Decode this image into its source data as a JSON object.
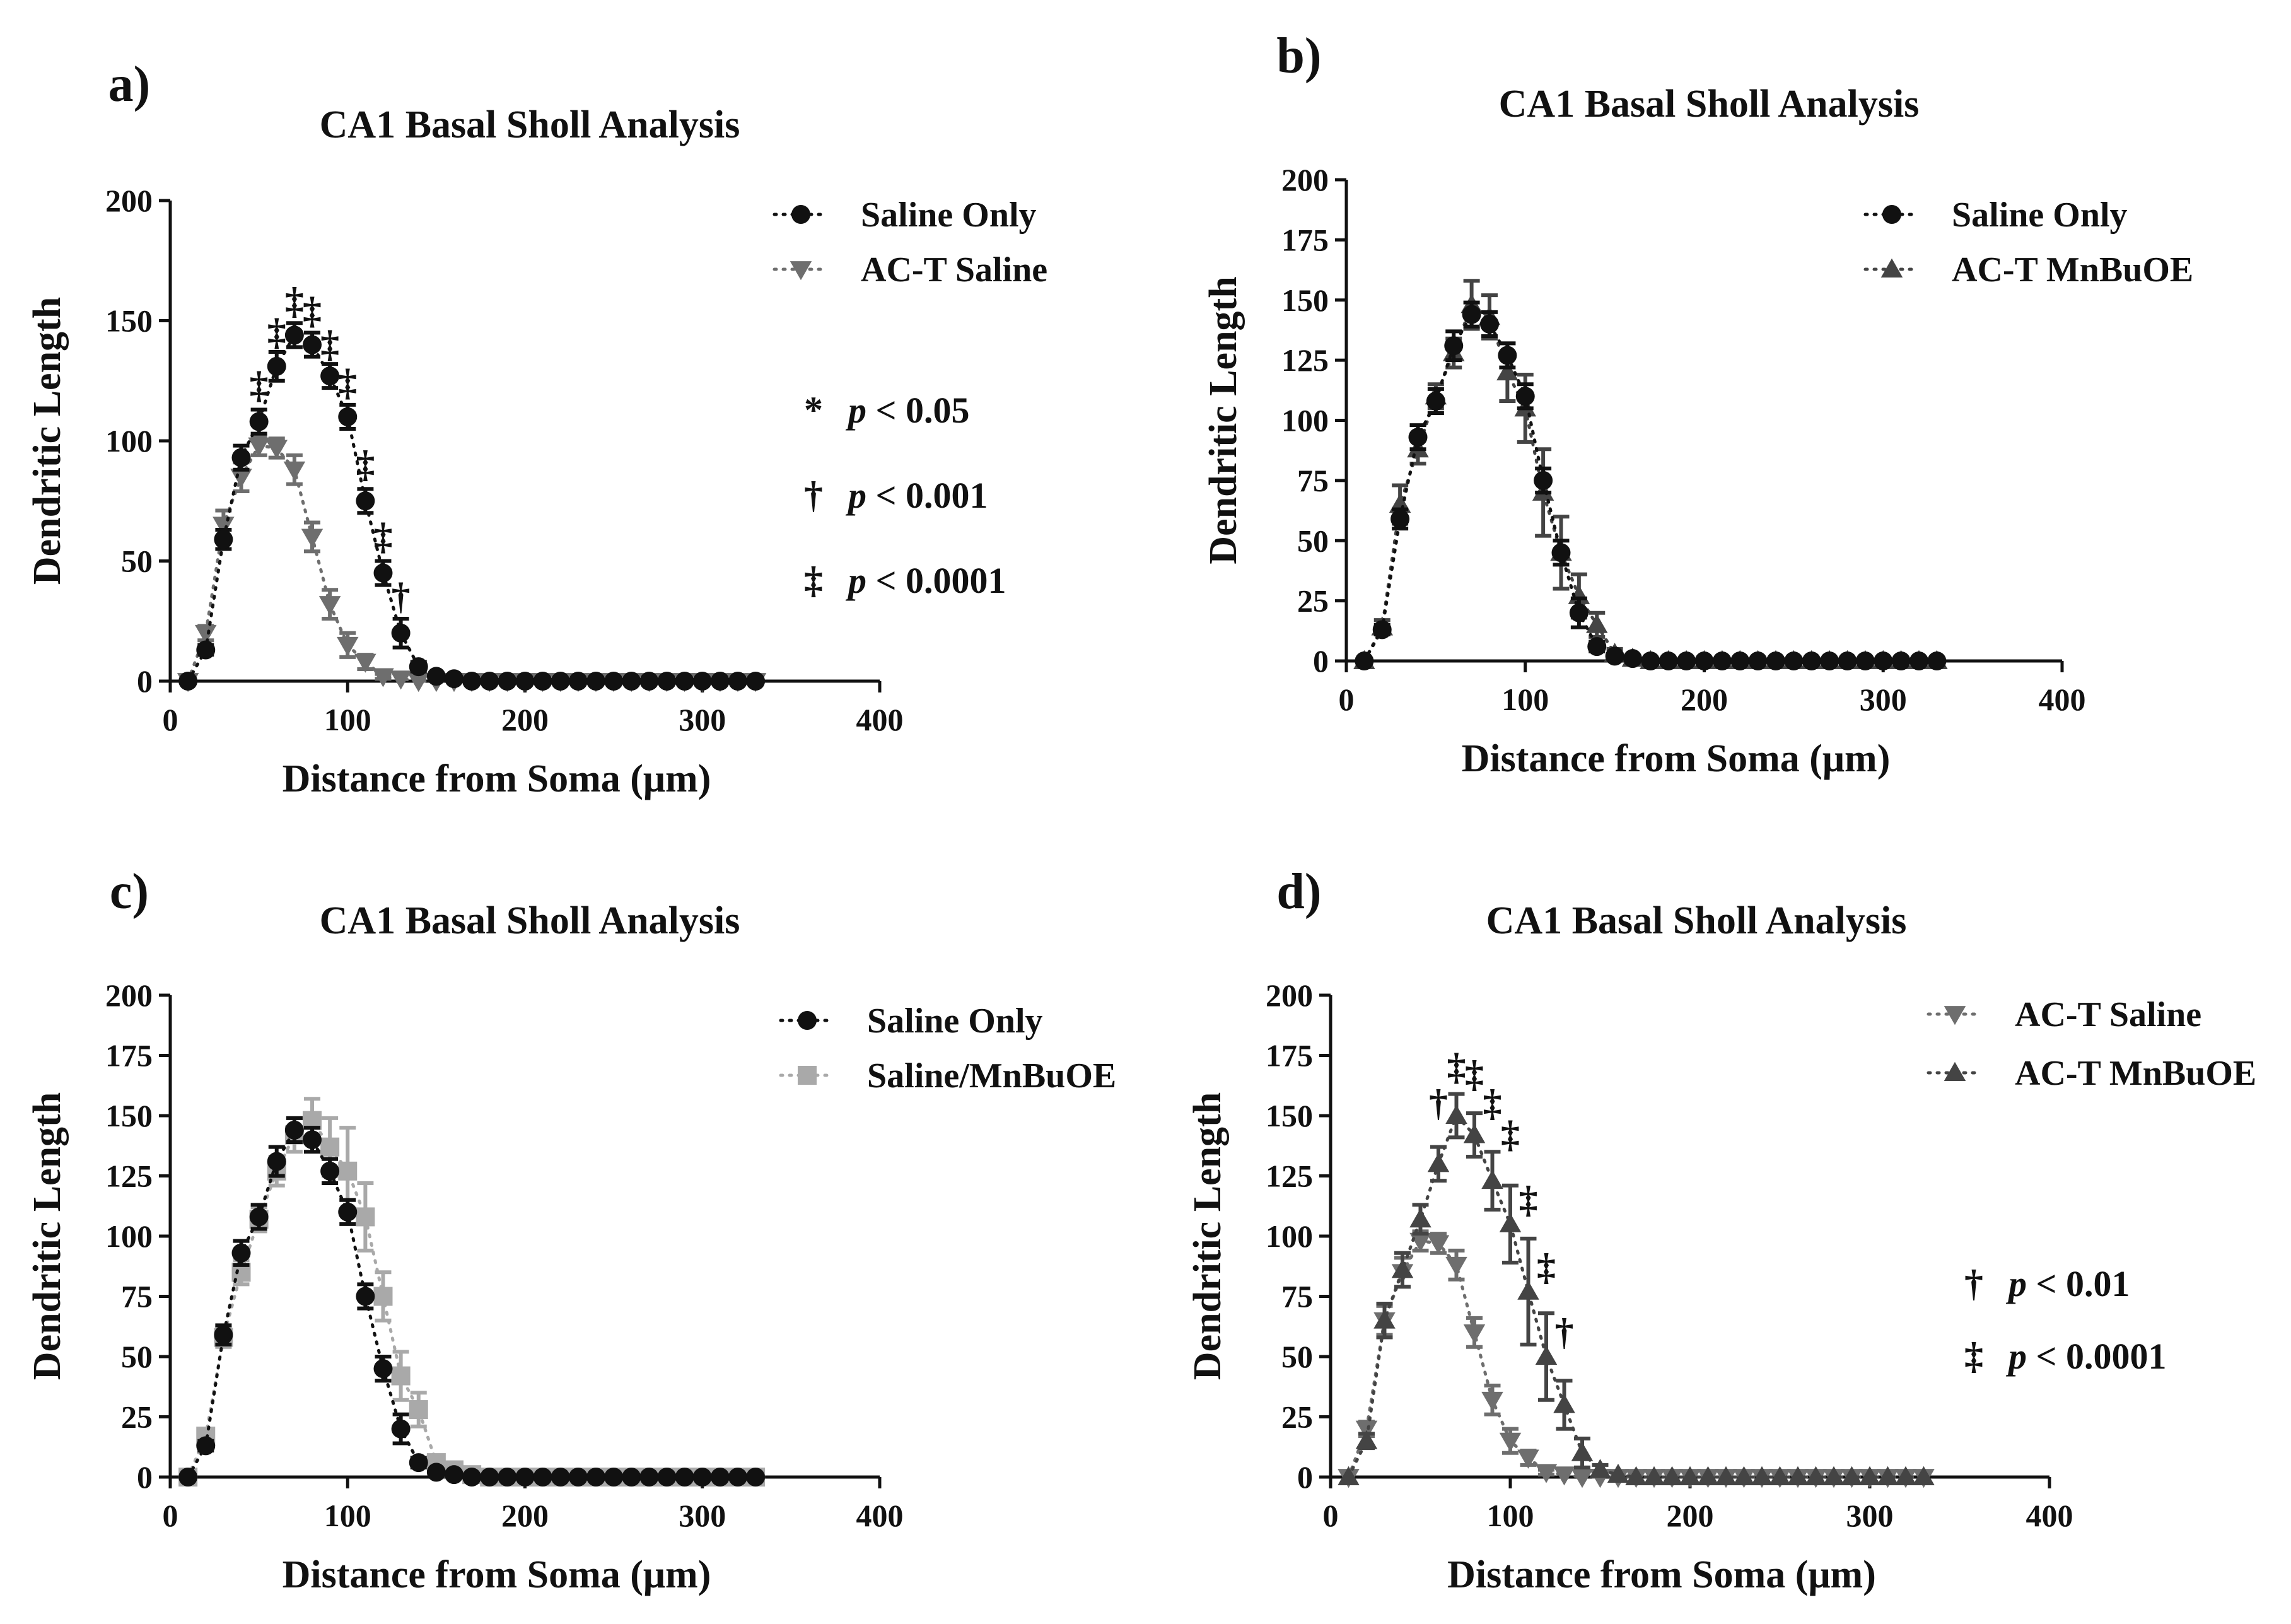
{
  "x_points": [
    10,
    20,
    30,
    40,
    50,
    60,
    70,
    80,
    90,
    100,
    110,
    120,
    130,
    140,
    150,
    160,
    170,
    180,
    190,
    200,
    210,
    220,
    230,
    240,
    250,
    260,
    270,
    280,
    290,
    300,
    310,
    320,
    330
  ],
  "series": {
    "saline_only": {
      "name": "Saline Only",
      "marker": "circle",
      "color": "#111111",
      "values": [
        0,
        13,
        59,
        93,
        108,
        131,
        144,
        140,
        127,
        110,
        75,
        45,
        20,
        6,
        2,
        1,
        0,
        0,
        0,
        0,
        0,
        0,
        0,
        0,
        0,
        0,
        0,
        0,
        0,
        0,
        0,
        0,
        0
      ],
      "errors": [
        0,
        2,
        4,
        5,
        5,
        6,
        5,
        5,
        5,
        5,
        5,
        5,
        6,
        2,
        1,
        0,
        0,
        0,
        0,
        0,
        0,
        0,
        0,
        0,
        0,
        0,
        0,
        0,
        0,
        0,
        0,
        0,
        0
      ]
    },
    "act_saline": {
      "name": "AC-T Saline",
      "marker": "triangle-down",
      "color": "#6e6e6e",
      "values": [
        0,
        20,
        65,
        85,
        98,
        97,
        88,
        60,
        32,
        15,
        8,
        2,
        1,
        0,
        0,
        0,
        0,
        0,
        0,
        0,
        0,
        0,
        0,
        0,
        0,
        0,
        0,
        0,
        0,
        0,
        0,
        0,
        0
      ],
      "errors": [
        0,
        3,
        6,
        6,
        4,
        4,
        6,
        6,
        6,
        5,
        3,
        1,
        0,
        0,
        0,
        0,
        0,
        0,
        0,
        0,
        0,
        0,
        0,
        0,
        0,
        0,
        0,
        0,
        0,
        0,
        0,
        0,
        0
      ]
    },
    "act_mnbuoe": {
      "name": "AC-T MnBuOE",
      "marker": "triangle-up",
      "color": "#444444",
      "values": [
        0,
        15,
        65,
        86,
        107,
        130,
        150,
        142,
        123,
        105,
        77,
        50,
        30,
        10,
        3,
        1,
        0,
        0,
        0,
        0,
        0,
        0,
        0,
        0,
        0,
        0,
        0,
        0,
        0,
        0,
        0,
        0,
        0
      ],
      "errors": [
        0,
        3,
        7,
        7,
        6,
        7,
        9,
        9,
        12,
        16,
        22,
        18,
        10,
        6,
        2,
        0,
        0,
        0,
        0,
        0,
        0,
        0,
        0,
        0,
        0,
        0,
        0,
        0,
        0,
        0,
        0,
        0,
        0
      ]
    },
    "saline_mnbuoe": {
      "name": "Saline/MnBuOE",
      "marker": "square",
      "color": "#a9a9a9",
      "values": [
        0,
        17,
        58,
        85,
        107,
        127,
        142,
        148,
        137,
        127,
        108,
        75,
        42,
        28,
        6,
        3,
        1,
        0,
        0,
        0,
        0,
        0,
        0,
        0,
        0,
        0,
        0,
        0,
        0,
        0,
        0,
        0,
        0
      ],
      "errors": [
        0,
        2,
        4,
        5,
        5,
        6,
        7,
        9,
        12,
        18,
        14,
        10,
        10,
        7,
        2,
        1,
        0,
        0,
        0,
        0,
        0,
        0,
        0,
        0,
        0,
        0,
        0,
        0,
        0,
        0,
        0,
        0,
        0
      ]
    }
  },
  "panels": [
    {
      "id": "a",
      "label": "a)",
      "title": "CA1 Basal Sholl Analysis",
      "xlabel": "Distance from Soma (μm)",
      "ylabel": "Dendritic Length",
      "xlim": [
        0,
        400
      ],
      "ylim": [
        0,
        200
      ],
      "xticks": [
        "0",
        "100",
        "200",
        "300",
        "400"
      ],
      "yticks": [
        "0",
        "50",
        "100",
        "150",
        "200"
      ],
      "series_keys": [
        "act_saline",
        "saline_only"
      ],
      "legend": [
        {
          "label": "Saline Only",
          "marker": "circle",
          "color": "#111111"
        },
        {
          "label": "AC-T Saline",
          "marker": "triangle-down",
          "color": "#6e6e6e"
        }
      ],
      "significance_legend": [
        {
          "symbol": "*",
          "p_text": "p",
          "threshold": "< 0.05"
        },
        {
          "symbol": "†",
          "p_text": "p",
          "threshold": "< 0.001"
        },
        {
          "symbol": "‡",
          "p_text": "p",
          "threshold": "< 0.0001"
        }
      ],
      "significance_marks": [
        {
          "x": 50,
          "y_data": 118,
          "symbol": "‡"
        },
        {
          "x": 60,
          "y_data": 140,
          "symbol": "‡"
        },
        {
          "x": 70,
          "y_data": 153,
          "symbol": "‡"
        },
        {
          "x": 80,
          "y_data": 149,
          "symbol": "‡"
        },
        {
          "x": 90,
          "y_data": 135,
          "symbol": "‡"
        },
        {
          "x": 100,
          "y_data": 119,
          "symbol": "‡"
        },
        {
          "x": 110,
          "y_data": 85,
          "symbol": "‡"
        },
        {
          "x": 120,
          "y_data": 55,
          "symbol": "‡"
        },
        {
          "x": 130,
          "y_data": 30,
          "symbol": "†"
        }
      ]
    },
    {
      "id": "b",
      "label": "b)",
      "title": "CA1 Basal Sholl Analysis",
      "xlabel": "Distance from Soma (μm)",
      "ylabel": "Dendritic Length",
      "xlim": [
        0,
        400
      ],
      "ylim": [
        0,
        200
      ],
      "xticks": [
        "0",
        "100",
        "200",
        "300",
        "400"
      ],
      "yticks": [
        "0",
        "25",
        "50",
        "75",
        "100",
        "125",
        "150",
        "175",
        "200"
      ],
      "series_keys": [
        "act_mnbuoe_b",
        "saline_only"
      ],
      "legend": [
        {
          "label": "Saline Only",
          "marker": "circle",
          "color": "#111111"
        },
        {
          "label": "AC-T MnBuOE",
          "marker": "triangle-up",
          "color": "#444444"
        }
      ],
      "significance_legend": [],
      "significance_marks": []
    },
    {
      "id": "c",
      "label": "c)",
      "title": "CA1 Basal Sholl Analysis",
      "xlabel": "Distance from Soma (μm)",
      "ylabel": "Dendritic Length",
      "xlim": [
        0,
        400
      ],
      "ylim": [
        0,
        200
      ],
      "xticks": [
        "0",
        "100",
        "200",
        "300",
        "400"
      ],
      "yticks": [
        "0",
        "25",
        "50",
        "75",
        "100",
        "125",
        "150",
        "175",
        "200"
      ],
      "series_keys": [
        "saline_mnbuoe",
        "saline_only"
      ],
      "legend": [
        {
          "label": "Saline Only",
          "marker": "circle",
          "color": "#111111"
        },
        {
          "label": "Saline/MnBuOE",
          "marker": "square",
          "color": "#a9a9a9"
        }
      ],
      "significance_legend": [],
      "significance_marks": []
    },
    {
      "id": "d",
      "label": "d)",
      "title": "CA1 Basal Sholl Analysis",
      "xlabel": "Distance from Soma (μm)",
      "ylabel": "Dendritic Length",
      "xlim": [
        0,
        400
      ],
      "ylim": [
        0,
        200
      ],
      "xticks": [
        "0",
        "100",
        "200",
        "300",
        "400"
      ],
      "yticks": [
        "0",
        "25",
        "50",
        "75",
        "100",
        "125",
        "150",
        "175",
        "200"
      ],
      "series_keys": [
        "act_saline",
        "act_mnbuoe"
      ],
      "legend": [
        {
          "label": "AC-T Saline",
          "marker": "triangle-down",
          "color": "#6e6e6e"
        },
        {
          "label": "AC-T MnBuOE",
          "marker": "triangle-up",
          "color": "#444444"
        }
      ],
      "significance_legend": [
        {
          "symbol": "†",
          "p_text": "p",
          "threshold": "< 0.01"
        },
        {
          "symbol": "‡",
          "p_text": "p",
          "threshold": "< 0.0001"
        }
      ],
      "significance_marks": [
        {
          "x": 60,
          "y_data": 150,
          "symbol": "†"
        },
        {
          "x": 70,
          "y_data": 165,
          "symbol": "‡"
        },
        {
          "x": 80,
          "y_data": 162,
          "symbol": "‡"
        },
        {
          "x": 90,
          "y_data": 150,
          "symbol": "‡"
        },
        {
          "x": 100,
          "y_data": 137,
          "symbol": "‡"
        },
        {
          "x": 110,
          "y_data": 110,
          "symbol": "‡"
        },
        {
          "x": 120,
          "y_data": 82,
          "symbol": "‡"
        },
        {
          "x": 130,
          "y_data": 55,
          "symbol": "†"
        }
      ]
    }
  ],
  "chart_data": [
    {
      "type": "line",
      "panel": "a",
      "title": "CA1 Basal Sholl Analysis",
      "xlabel": "Distance from Soma (μm)",
      "ylabel": "Dendritic Length",
      "xlim": [
        0,
        400
      ],
      "ylim": [
        0,
        200
      ],
      "x": [
        10,
        20,
        30,
        40,
        50,
        60,
        70,
        80,
        90,
        100,
        110,
        120,
        130,
        140,
        150,
        160,
        170,
        180,
        190,
        200,
        210,
        220,
        230,
        240,
        250,
        260,
        270,
        280,
        290,
        300,
        310,
        320,
        330
      ],
      "series": [
        {
          "name": "Saline Only",
          "values": [
            0,
            13,
            59,
            93,
            108,
            131,
            144,
            140,
            127,
            110,
            75,
            45,
            20,
            6,
            2,
            1,
            0,
            0,
            0,
            0,
            0,
            0,
            0,
            0,
            0,
            0,
            0,
            0,
            0,
            0,
            0,
            0,
            0
          ]
        },
        {
          "name": "AC-T Saline",
          "values": [
            0,
            20,
            65,
            85,
            98,
            97,
            88,
            60,
            32,
            15,
            8,
            2,
            1,
            0,
            0,
            0,
            0,
            0,
            0,
            0,
            0,
            0,
            0,
            0,
            0,
            0,
            0,
            0,
            0,
            0,
            0,
            0,
            0
          ]
        }
      ]
    },
    {
      "type": "line",
      "panel": "b",
      "title": "CA1 Basal Sholl Analysis",
      "xlabel": "Distance from Soma (μm)",
      "ylabel": "Dendritic Length",
      "xlim": [
        0,
        400
      ],
      "ylim": [
        0,
        200
      ],
      "x": [
        10,
        20,
        30,
        40,
        50,
        60,
        70,
        80,
        90,
        100,
        110,
        120,
        130,
        140,
        150,
        160,
        170,
        180,
        190,
        200,
        210,
        220,
        230,
        240,
        250,
        260,
        270,
        280,
        290,
        300,
        310,
        320,
        330
      ],
      "series": [
        {
          "name": "Saline Only",
          "values": [
            0,
            13,
            59,
            93,
            108,
            131,
            144,
            140,
            127,
            110,
            75,
            45,
            20,
            6,
            2,
            1,
            0,
            0,
            0,
            0,
            0,
            0,
            0,
            0,
            0,
            0,
            0,
            0,
            0,
            0,
            0,
            0,
            0
          ]
        },
        {
          "name": "AC-T MnBuOE",
          "values": [
            0,
            14,
            65,
            88,
            110,
            128,
            148,
            143,
            120,
            105,
            70,
            45,
            27,
            15,
            3,
            1,
            0,
            0,
            0,
            0,
            0,
            0,
            0,
            0,
            0,
            0,
            0,
            0,
            0,
            0,
            0,
            0,
            0
          ]
        }
      ]
    },
    {
      "type": "line",
      "panel": "c",
      "title": "CA1 Basal Sholl Analysis",
      "xlabel": "Distance from Soma (μm)",
      "ylabel": "Dendritic Length",
      "xlim": [
        0,
        400
      ],
      "ylim": [
        0,
        200
      ],
      "x": [
        10,
        20,
        30,
        40,
        50,
        60,
        70,
        80,
        90,
        100,
        110,
        120,
        130,
        140,
        150,
        160,
        170,
        180,
        190,
        200,
        210,
        220,
        230,
        240,
        250,
        260,
        270,
        280,
        290,
        300,
        310,
        320,
        330
      ],
      "series": [
        {
          "name": "Saline Only",
          "values": [
            0,
            13,
            59,
            93,
            108,
            131,
            144,
            140,
            127,
            110,
            75,
            45,
            20,
            6,
            2,
            1,
            0,
            0,
            0,
            0,
            0,
            0,
            0,
            0,
            0,
            0,
            0,
            0,
            0,
            0,
            0,
            0,
            0
          ]
        },
        {
          "name": "Saline/MnBuOE",
          "values": [
            0,
            17,
            58,
            85,
            107,
            127,
            142,
            148,
            137,
            127,
            108,
            75,
            42,
            28,
            6,
            3,
            1,
            0,
            0,
            0,
            0,
            0,
            0,
            0,
            0,
            0,
            0,
            0,
            0,
            0,
            0,
            0,
            0
          ]
        }
      ]
    },
    {
      "type": "line",
      "panel": "d",
      "title": "CA1 Basal Sholl Analysis",
      "xlabel": "Distance from Soma (μm)",
      "ylabel": "Dendritic Length",
      "xlim": [
        0,
        400
      ],
      "ylim": [
        0,
        200
      ],
      "x": [
        10,
        20,
        30,
        40,
        50,
        60,
        70,
        80,
        90,
        100,
        110,
        120,
        130,
        140,
        150,
        160,
        170,
        180,
        190,
        200,
        210,
        220,
        230,
        240,
        250,
        260,
        270,
        280,
        290,
        300,
        310,
        320,
        330
      ],
      "series": [
        {
          "name": "AC-T Saline",
          "values": [
            0,
            20,
            65,
            85,
            98,
            97,
            88,
            60,
            32,
            15,
            8,
            2,
            1,
            0,
            0,
            0,
            0,
            0,
            0,
            0,
            0,
            0,
            0,
            0,
            0,
            0,
            0,
            0,
            0,
            0,
            0,
            0,
            0
          ]
        },
        {
          "name": "AC-T MnBuOE",
          "values": [
            0,
            15,
            65,
            86,
            107,
            130,
            150,
            142,
            123,
            105,
            77,
            50,
            30,
            10,
            3,
            1,
            0,
            0,
            0,
            0,
            0,
            0,
            0,
            0,
            0,
            0,
            0,
            0,
            0,
            0,
            0,
            0,
            0
          ]
        }
      ]
    }
  ]
}
